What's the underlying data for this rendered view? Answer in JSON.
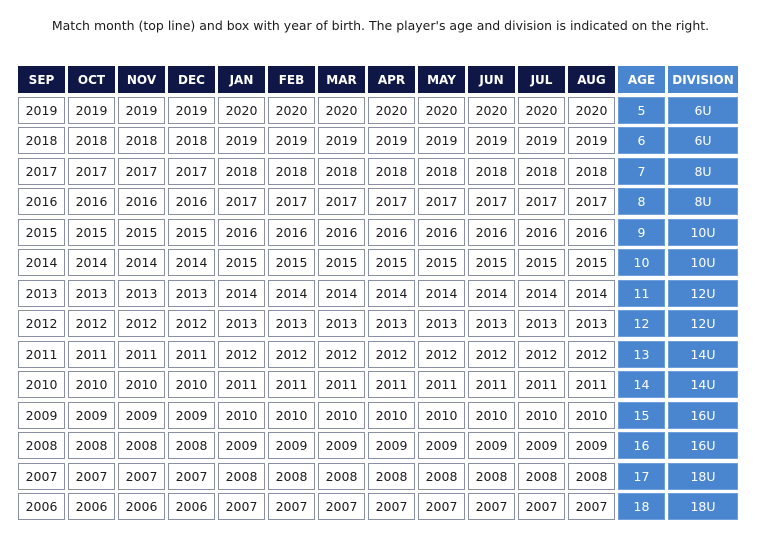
{
  "caption": "Match month (top line) and box with year of birth. The player's age and division is indicated on the right.",
  "headers": [
    "SEP",
    "OCT",
    "NOV",
    "DEC",
    "JAN",
    "FEB",
    "MAR",
    "APR",
    "MAY",
    "JUN",
    "JUL",
    "AUG",
    "AGE",
    "DIVISION"
  ],
  "rows": [
    {
      "years": [
        "2019",
        "2019",
        "2019",
        "2019",
        "2020",
        "2020",
        "2020",
        "2020",
        "2020",
        "2020",
        "2020",
        "2020"
      ],
      "age": "5",
      "division": "6U"
    },
    {
      "years": [
        "2018",
        "2018",
        "2018",
        "2018",
        "2019",
        "2019",
        "2019",
        "2019",
        "2019",
        "2019",
        "2019",
        "2019"
      ],
      "age": "6",
      "division": "6U"
    },
    {
      "years": [
        "2017",
        "2017",
        "2017",
        "2017",
        "2018",
        "2018",
        "2018",
        "2018",
        "2018",
        "2018",
        "2018",
        "2018"
      ],
      "age": "7",
      "division": "8U"
    },
    {
      "years": [
        "2016",
        "2016",
        "2016",
        "2016",
        "2017",
        "2017",
        "2017",
        "2017",
        "2017",
        "2017",
        "2017",
        "2017"
      ],
      "age": "8",
      "division": "8U"
    },
    {
      "years": [
        "2015",
        "2015",
        "2015",
        "2015",
        "2016",
        "2016",
        "2016",
        "2016",
        "2016",
        "2016",
        "2016",
        "2016"
      ],
      "age": "9",
      "division": "10U"
    },
    {
      "years": [
        "2014",
        "2014",
        "2014",
        "2014",
        "2015",
        "2015",
        "2015",
        "2015",
        "2015",
        "2015",
        "2015",
        "2015"
      ],
      "age": "10",
      "division": "10U"
    },
    {
      "years": [
        "2013",
        "2013",
        "2013",
        "2013",
        "2014",
        "2014",
        "2014",
        "2014",
        "2014",
        "2014",
        "2014",
        "2014"
      ],
      "age": "11",
      "division": "12U"
    },
    {
      "years": [
        "2012",
        "2012",
        "2012",
        "2012",
        "2013",
        "2013",
        "2013",
        "2013",
        "2013",
        "2013",
        "2013",
        "2013"
      ],
      "age": "12",
      "division": "12U"
    },
    {
      "years": [
        "2011",
        "2011",
        "2011",
        "2011",
        "2012",
        "2012",
        "2012",
        "2012",
        "2012",
        "2012",
        "2012",
        "2012"
      ],
      "age": "13",
      "division": "14U"
    },
    {
      "years": [
        "2010",
        "2010",
        "2010",
        "2010",
        "2011",
        "2011",
        "2011",
        "2011",
        "2011",
        "2011",
        "2011",
        "2011"
      ],
      "age": "14",
      "division": "14U"
    },
    {
      "years": [
        "2009",
        "2009",
        "2009",
        "2009",
        "2010",
        "2010",
        "2010",
        "2010",
        "2010",
        "2010",
        "2010",
        "2010"
      ],
      "age": "15",
      "division": "16U"
    },
    {
      "years": [
        "2008",
        "2008",
        "2008",
        "2008",
        "2009",
        "2009",
        "2009",
        "2009",
        "2009",
        "2009",
        "2009",
        "2009"
      ],
      "age": "16",
      "division": "16U"
    },
    {
      "years": [
        "2007",
        "2007",
        "2007",
        "2007",
        "2008",
        "2008",
        "2008",
        "2008",
        "2008",
        "2008",
        "2008",
        "2008"
      ],
      "age": "17",
      "division": "18U"
    },
    {
      "years": [
        "2006",
        "2006",
        "2006",
        "2006",
        "2007",
        "2007",
        "2007",
        "2007",
        "2007",
        "2007",
        "2007",
        "2007"
      ],
      "age": "18",
      "division": "18U"
    }
  ],
  "colors": {
    "header_navy": "#0f1747",
    "age_division_blue": "#4a86cf"
  }
}
